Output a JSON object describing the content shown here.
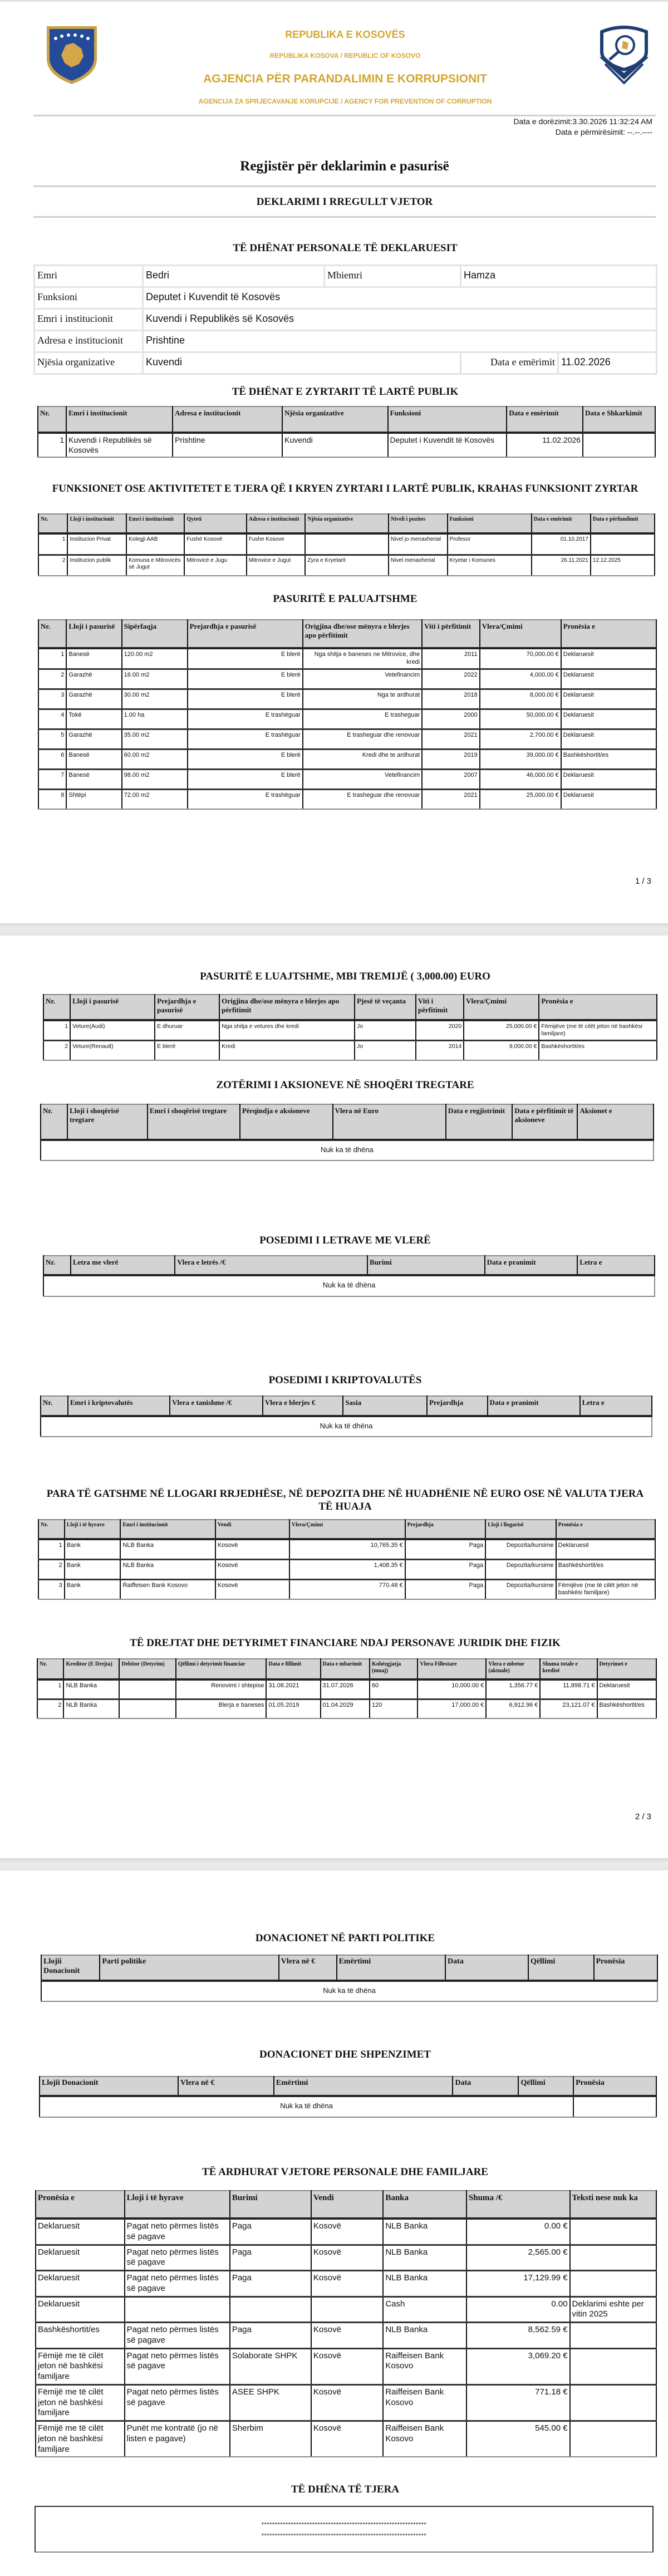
{
  "header": {
    "republic_sq": "REPUBLIKA E KOSOVËS",
    "republic_sr_en": "REPUBLIKA KOSOVA / REPUBLIC OF KOSOVO",
    "agency_sq": "AGJENCIA PËR PARANDALIMIN E KORRUPSIONIT",
    "agency_sr_en": "AGENCIJA ZA SPRJECAVANJE KORUPCIJE / AGENCY FOR PREVENTION OF CORRUPTION",
    "left_logo_icon": "kosovo-coat-of-arms",
    "right_logo_icon": "anti-corruption-agency-emblem",
    "gold_color": "#d4a62e"
  },
  "submission": {
    "submitted_label": "Data e dorëzimit:",
    "submitted_value": "3.30.2026 11:32:24 AM",
    "amended_label": "Data e përmirësimit:",
    "amended_value": "--.--.----"
  },
  "title": "Regjistër për deklarimin e pasurisë",
  "subtitle": "DEKLARIMI I RREGULLT VJETOR",
  "personal": {
    "heading": "TË DHËNAT PERSONALE TË DEKLARUESIT",
    "name_label": "Emri",
    "name": "Bedri",
    "surname_label": "Mbiemri",
    "surname": "Hamza",
    "function_label": "Funksioni",
    "function": "Deputet i Kuvendit të Kosovës",
    "institution_label": "Emri i institucionit",
    "institution": "Kuvendi i Republikës së Kosovës",
    "address_label": "Adresa e institucionit",
    "address": "Prishtine",
    "unit_label": "Njësia organizative",
    "unit": "Kuvendi",
    "appointed_label": "Data e emërimit",
    "appointed": "11.02.2026"
  },
  "sections": [
    {
      "heading": "TË DHËNAT E ZYRTARIT TË LARTË PUBLIK",
      "headers": [
        "Nr.",
        "Emri i institucionit",
        "Adresa e institucionit",
        "Njësia organizative",
        "Funksioni",
        "Data e emërimit",
        "Data e Shkarkimit"
      ],
      "rows": [
        [
          "1",
          "Kuvendi i Republikës së Kosovës",
          "Prishtine",
          "Kuvendi",
          "Deputet i Kuvendit të Kosovës",
          "11.02.2026",
          ""
        ]
      ]
    },
    {
      "heading": "FUNKSIONET OSE AKTIVITETET E TJERA QË I KRYEN ZYRTARI I LARTË PUBLIK, KRAHAS FUNKSIONIT ZYRTAR",
      "headers": [
        "Nr.",
        "Lloji i institucionit",
        "Emri i institucionit",
        "Qyteti",
        "Adresa e institucionit",
        "Njësia organizative",
        "Niveli i pozites",
        "Funksioni",
        "Data e emërimit",
        "Data e përfundimit"
      ],
      "rows": [
        [
          "1",
          "Institucion Privat",
          "Kolegji AAB",
          "Fushë Kosovë",
          "Fushe Kosove",
          "",
          "Nivel jo menaxherial",
          "Profesor",
          "01.10.2017",
          ""
        ],
        [
          "2",
          "Institucion publik",
          "Komuna e Mitrovicës së Jugut",
          "Mitrovicë e Jugu",
          "Mitrovice e Jugut",
          "Zyra e Kryetarit",
          "Nivel menaxherial",
          "Kryetar i Komunes",
          "26.11.2021",
          "12.12.2025"
        ]
      ]
    },
    {
      "heading": "PASURITË E PALUAJTSHME",
      "headers": [
        "Nr.",
        "Lloji i pasurisë",
        "Sipërfaqja",
        "Prejardhja e pasurisë",
        "Origjina dhe/ose mënyra e blerjes apo përfitimit",
        "Viti i përfitimit",
        "Vlera/Çmimi",
        "Pronësia e"
      ],
      "rows": [
        [
          "1",
          "Banesë",
          "120.00 m2",
          "E blerë",
          "Nga shitja e baneses ne Mitrovice, dhe kredi",
          "2011",
          "70,000.00 €",
          "Deklaruesit"
        ],
        [
          "2",
          "Garazhë",
          "16.00 m2",
          "E blerë",
          "Vetefinancim",
          "2022",
          "4,000.00 €",
          "Deklaruesit"
        ],
        [
          "3",
          "Garazhë",
          "30.00 m2",
          "E blerë",
          "Nga te ardhurat",
          "2018",
          "8,000.00 €",
          "Deklaruesit"
        ],
        [
          "4",
          "Tokë",
          "1.00 ha",
          "E trashëguar",
          "E trasheguar",
          "2000",
          "50,000.00 €",
          "Deklaruesit"
        ],
        [
          "5",
          "Garazhë",
          "35.00 m2",
          "E trashëguar",
          "E trasheguar dhe renovuar",
          "2021",
          "2,700.00 €",
          "Deklaruesit"
        ],
        [
          "6",
          "Banesë",
          "60.00 m2",
          "E blerë",
          "Kredi dhe te ardhurat",
          "2019",
          "39,000.00 €",
          "Bashkëshortit/es"
        ],
        [
          "7",
          "Banesë",
          "98.00 m2",
          "E blerë",
          "Vetefinancim",
          "2007",
          "46,000.00 €",
          "Deklaruesit"
        ],
        [
          "8",
          "Shtëpi",
          "72.00 m2",
          "E trashëguar",
          "E trasheguar dhe renovuar",
          "2021",
          "25,000.00 €",
          "Deklaruesit"
        ]
      ]
    },
    {
      "heading": "PASURITË E LUAJTSHME, MBI TREMIJË ( 3,000.00) EURO",
      "headers": [
        "Nr.",
        "Lloji i pasurisë",
        "Prejardhja e pasurisë",
        "Origjina dhe/ose mënyra e blerjes apo përfitimit",
        "Pjesë të veçanta",
        "Viti i përfitimit",
        "Vlera/Çmimi",
        "Pronësia e"
      ],
      "rows": [
        [
          "1",
          "Veture(Audi)",
          "E dhuruar",
          "Nga shitja e vetures dhe kredi",
          "Jo",
          "2020",
          "25,000.00 €",
          "Fëmijëve (me të cilët jeton në bashkësi familjare)"
        ],
        [
          "2",
          "Veture(Renault)",
          "E blerë",
          "Kredi",
          "Jo",
          "2014",
          "9,000.00 €",
          "Bashkëshortit/es"
        ]
      ]
    },
    {
      "heading": "ZOTËRIMI I AKSIONEVE NË SHOQËRI TREGTARE",
      "headers": [
        "Nr.",
        "Lloji i shoqërisë tregtare",
        "Emri i shoqërisë tregtare",
        "Përqindja e aksioneve",
        "Vlera në Euro",
        "Data e regjistrimit",
        "Data e përfitimit të aksioneve",
        "Aksionet e"
      ],
      "rows": [],
      "empty_text": "Nuk ka të dhëna"
    },
    {
      "heading": "POSEDIMI I LETRAVE ME VLERË",
      "headers": [
        "Nr.",
        "Letra me vlerë",
        "Vlera e letrës /€",
        "Burimi",
        "Data e pranimit",
        "Letra e"
      ],
      "rows": [],
      "empty_text": "Nuk ka të dhëna"
    },
    {
      "heading": "POSEDIMI I KRIPTOVALUTËS",
      "headers": [
        "Nr.",
        "Emri i kriptovalutës",
        "Vlera e tanishme /€",
        "Vlera e blerjes €",
        "Sasia",
        "Prejardhja",
        "Data e pranimit",
        "Letra e"
      ],
      "rows": [],
      "empty_text": "Nuk ka të dhëna"
    },
    {
      "heading": "PARA TË GATSHME NË LLOGARI RRJEDHËSE, NË DEPOZITA DHE NË HUADHËNIE NË EURO OSE NË VALUTA TJERA TË HUAJA",
      "headers": [
        "Nr.",
        "Lloji i të hyrave",
        "Emri i institucionit",
        "Vendi",
        "Vlera/Çmimi",
        "Prejardhja",
        "Lloji i llogarisë",
        "Pronësia e"
      ],
      "rows": [
        [
          "1",
          "Bank",
          "NLB Banka",
          "Kosovë",
          "10,765.35 €",
          "Paga",
          "Depozita/kursime",
          "Deklaruesit"
        ],
        [
          "2",
          "Bank",
          "NLB Banka",
          "Kosovë",
          "1,408.35 €",
          "Paga",
          "Depozita/kursime",
          "Bashkëshortit/es"
        ],
        [
          "3",
          "Bank",
          "Raiffeisen Bank Kosovo",
          "Kosovë",
          "770.48 €",
          "Paga",
          "Depozita/kursime",
          "Fëmijëve (me të cilët jeton në bashkësi familjare)"
        ]
      ]
    },
    {
      "heading": "TË DREJTAT DHE DETYRIMET FINANCIARE NDAJ PERSONAVE JURIDIK DHE FIZIK",
      "headers": [
        "Nr.",
        "Kreditor (E Drejta)",
        "Debitor (Detyrim)",
        "Qëllimi i detyrimit financiar",
        "Data e fillimit",
        "Data e mbarimit",
        "Kohëzgjatja (muaj)",
        "Vlera Fillestare",
        "Vlera e mbetur (aktuale)",
        "Shuma totale e kredisë",
        "Detyrimet e"
      ],
      "rows": [
        [
          "1",
          "NLB Banka",
          "",
          "Renovimi i shtepise",
          "31.08.2021",
          "31.07.2026",
          "60",
          "10,000.00 €",
          "1,356.77 €",
          "11,898.71 €",
          "Deklaruesit"
        ],
        [
          "2",
          "NLB Banka",
          "",
          "Blerja e baneses",
          "01.05.2019",
          "01.04.2029",
          "120",
          "17,000.00 €",
          "6,912.96 €",
          "23,121.07 €",
          "Bashkëshortit/es"
        ]
      ]
    },
    {
      "heading": "DONACIONET NË PARTI POLITIKE",
      "headers": [
        "Llojii Donacionit",
        "Parti politike",
        "Vlera në €",
        "Emërtimi",
        "Data",
        "Qëllimi",
        "Pronësia"
      ],
      "rows": [],
      "empty_text": "Nuk ka të dhëna"
    },
    {
      "heading": "DONACIONET DHE SHPENZIMET",
      "headers": [
        "Llojii Donacionit",
        "Vlera në €",
        "Emërtimi",
        "Data",
        "Qëllimi",
        "Pronësia"
      ],
      "rows": [],
      "empty_text": "Nuk ka të dhëna"
    },
    {
      "heading": "TË ARDHURAT VJETORE PERSONALE DHE FAMILJARE",
      "headers": [
        "Pronësia e",
        "Lloji i të hyrave",
        "Burimi",
        "Vendi",
        "Banka",
        "Shuma /€",
        "Teksti nese nuk ka"
      ],
      "rows": [
        [
          "Deklaruesit",
          "Pagat neto përmes listës së pagave",
          "Paga",
          "Kosovë",
          "NLB Banka",
          "0.00 €",
          ""
        ],
        [
          "Deklaruesit",
          "Pagat neto përmes listës së pagave",
          "Paga",
          "Kosovë",
          "NLB Banka",
          "2,565.00 €",
          ""
        ],
        [
          "Deklaruesit",
          "Pagat neto përmes listës së pagave",
          "Paga",
          "Kosovë",
          "NLB Banka",
          "17,129.99 €",
          ""
        ],
        [
          "Deklaruesit",
          "",
          "",
          "",
          "Cash",
          "0.00",
          "Deklarimi eshte per vitin 2025"
        ],
        [
          "Bashkëshortit/es",
          "Pagat neto përmes listës së pagave",
          "Paga",
          "Kosovë",
          "NLB Banka",
          "8,562.59 €",
          ""
        ],
        [
          "Fëmijë me të cilët jeton në bashkësi familjare",
          "Pagat neto përmes listës së pagave",
          "Solaborate SHPK",
          "Kosovë",
          "Raiffeisen Bank Kosovo",
          "3,069.20 €",
          ""
        ],
        [
          "Fëmijë me të cilët jeton në bashkësi familjare",
          "Pagat neto përmes listës së pagave",
          "ASEE SHPK",
          "Kosovë",
          "Raiffeisen Bank Kosovo",
          "771.18 €",
          ""
        ],
        [
          "Fëmijë me të cilët jeton në bashkësi familjare",
          "Punët me kontratë (jo në listen e pagave)",
          "Sherbim",
          "Kosovë",
          "Raiffeisen Bank Kosovo",
          "545.00 €",
          ""
        ]
      ]
    }
  ],
  "other": {
    "heading": "TË DHËNA TË TJERA",
    "lines": [
      "**************************************************************",
      "**************************************************************"
    ]
  },
  "pages": [
    "1 / 3",
    "2 / 3"
  ]
}
